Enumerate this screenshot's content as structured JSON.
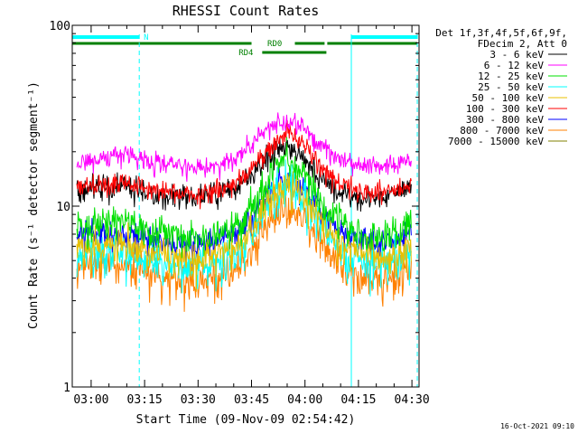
{
  "chart_data": {
    "type": "line",
    "title": "RHESSI Count Rates",
    "xlabel": "Start Time (09-Nov-09 02:54:42)",
    "ylabel": "Count Rate (s⁻¹ detector segment⁻¹)",
    "y_scale": "log",
    "ylim": [
      1,
      100
    ],
    "xlim": [
      "02:54:42",
      "04:32:00"
    ],
    "x_tick_labels": [
      "03:00",
      "03:15",
      "03:30",
      "03:45",
      "04:00",
      "04:15",
      "04:30"
    ],
    "y_tick_labels": [
      "1",
      "10",
      "100"
    ],
    "grid": false,
    "legend": {
      "position": "right",
      "header": [
        "Det 1f,3f,4f,5f,6f,9f,",
        "FDecim 2, Att 0"
      ]
    },
    "series": [
      {
        "name": "3 - 6 keV",
        "color": "#000000",
        "x": [
          "02:56",
          "03:00",
          "03:10",
          "03:20",
          "03:30",
          "03:40",
          "03:45",
          "03:50",
          "03:55",
          "04:00",
          "04:05",
          "04:10",
          "04:15",
          "04:20",
          "04:25",
          "04:30"
        ],
        "values": [
          12.5,
          12.5,
          13,
          11.5,
          11,
          12.5,
          15,
          19,
          22,
          18,
          14,
          12,
          11,
          11,
          11.5,
          13
        ]
      },
      {
        "name": "6 - 12 keV",
        "color": "#ff00ff",
        "x": [
          "02:56",
          "03:00",
          "03:10",
          "03:20",
          "03:30",
          "03:40",
          "03:45",
          "03:50",
          "03:55",
          "04:00",
          "04:05",
          "04:10",
          "04:15",
          "04:20",
          "04:25",
          "04:30"
        ],
        "values": [
          17,
          18,
          19,
          17,
          16,
          18,
          22,
          27,
          30,
          27,
          21,
          18,
          17,
          16.5,
          17,
          18
        ]
      },
      {
        "name": "12 - 25 keV",
        "color": "#00e000",
        "x": [
          "02:56",
          "03:00",
          "03:10",
          "03:20",
          "03:30",
          "03:40",
          "03:45",
          "03:50",
          "03:55",
          "04:00",
          "04:05",
          "04:10",
          "04:15",
          "04:20",
          "04:25",
          "04:30"
        ],
        "values": [
          7.5,
          8,
          8.5,
          7,
          6.5,
          7.5,
          10,
          15,
          19,
          15,
          10,
          8,
          7,
          6.5,
          7,
          8
        ]
      },
      {
        "name": "25 - 50 keV",
        "color": "#00ffff",
        "x": [
          "02:56",
          "03:00",
          "03:10",
          "03:20",
          "03:30",
          "03:40",
          "03:45",
          "03:50",
          "03:55",
          "04:00",
          "04:05",
          "04:10",
          "04:15",
          "04:20",
          "04:25",
          "04:30"
        ],
        "values": [
          5.2,
          5.5,
          5.5,
          4.8,
          4.5,
          5.2,
          7,
          11,
          14,
          11,
          7.5,
          5.5,
          5,
          4.8,
          5,
          5.5
        ]
      },
      {
        "name": "50 - 100 keV",
        "color": "#e8c000",
        "x": [
          "02:56",
          "03:00",
          "03:10",
          "03:20",
          "03:30",
          "03:40",
          "03:45",
          "03:50",
          "03:55",
          "04:00",
          "04:05",
          "04:10",
          "04:15",
          "04:20",
          "04:25",
          "04:30"
        ],
        "values": [
          5.8,
          6,
          6.2,
          5.4,
          5,
          5.8,
          7.5,
          11,
          13,
          11,
          8,
          6,
          5.5,
          5.3,
          5.5,
          6
        ]
      },
      {
        "name": "100 - 300 keV",
        "color": "#ff0000",
        "x": [
          "02:56",
          "03:00",
          "03:10",
          "03:20",
          "03:30",
          "03:40",
          "03:45",
          "03:50",
          "03:55",
          "04:00",
          "04:05",
          "04:10",
          "04:15",
          "04:20",
          "04:25",
          "04:30"
        ],
        "values": [
          13,
          13,
          13.5,
          12,
          11.5,
          13,
          16,
          21,
          26,
          22,
          16,
          13,
          12,
          12,
          12,
          13
        ]
      },
      {
        "name": "300 - 800 keV",
        "color": "#0000ff",
        "x": [
          "02:56",
          "03:00",
          "03:10",
          "03:20",
          "03:30",
          "03:40",
          "03:45",
          "03:50",
          "03:55",
          "04:00",
          "04:05",
          "04:10",
          "04:15",
          "04:20",
          "04:25",
          "04:30"
        ],
        "values": [
          6.8,
          7,
          7.2,
          6.3,
          6,
          6.8,
          8.5,
          11.5,
          14,
          12,
          9,
          7,
          6.5,
          6.3,
          6.5,
          7
        ]
      },
      {
        "name": "800 - 7000 keV",
        "color": "#ff8000",
        "x": [
          "02:56",
          "03:00",
          "03:10",
          "03:20",
          "03:30",
          "03:40",
          "03:45",
          "03:50",
          "03:55",
          "04:00",
          "04:05",
          "04:10",
          "04:15",
          "04:20",
          "04:25",
          "04:30"
        ],
        "values": [
          4.4,
          4.6,
          4.7,
          4,
          3.8,
          4.3,
          5.5,
          8,
          10,
          8.5,
          6,
          4.6,
          4.2,
          4,
          4.2,
          4.6
        ]
      },
      {
        "name": "7000 - 15000 keV",
        "color": "#808000",
        "x": [],
        "values": []
      }
    ],
    "annotations": {
      "text_labels": [
        "N",
        "RD0",
        "RD4"
      ],
      "state_bars": [
        {
          "label": "N",
          "color": "#00ffff",
          "segments": [
            [
              "02:54:42",
              "03:13:30"
            ],
            [
              "04:13:00",
              "04:31:30"
            ]
          ]
        },
        {
          "label": "RD0",
          "color": "#008000",
          "segments": [
            [
              "02:54:42",
              "04:06:00"
            ],
            [
              "04:06:00",
              "04:31:30"
            ]
          ]
        },
        {
          "label": "RD4",
          "color": "#008000",
          "segments": [
            [
              "03:48:00",
              "04:06:00"
            ]
          ]
        }
      ],
      "vertical_markers": [
        {
          "time": "02:54:42",
          "color": "#00ffff",
          "style": "solid"
        },
        {
          "time": "03:13:30",
          "color": "#00ffff",
          "style": "dashed"
        },
        {
          "time": "04:13:00",
          "color": "#00ffff",
          "style": "solid"
        },
        {
          "time": "04:31:30",
          "color": "#00ffff",
          "style": "dashed"
        }
      ]
    }
  },
  "stamp": "16-Oct-2021 09:10"
}
